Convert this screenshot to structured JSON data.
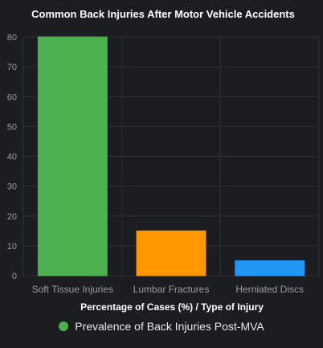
{
  "chart_data": {
    "type": "bar",
    "title": "Common Back Injuries After Motor Vehicle Accidents",
    "xlabel": "Percentage of Cases (%) / Type of Injury",
    "ylabel": "",
    "categories": [
      "Soft Tissue Injuries",
      "Lumbar Fractures",
      "Herniated Discs"
    ],
    "series": [
      {
        "name": "Prevalence of Back Injuries Post-MVA",
        "values": [
          80,
          15,
          5
        ]
      }
    ],
    "ylim": [
      0,
      80
    ],
    "yticks": [
      0,
      10,
      20,
      30,
      40,
      50,
      60,
      70,
      80
    ],
    "grid": true,
    "legend_position": "bottom",
    "bar_colors": [
      "#4caf50",
      "#ff9800",
      "#2196f3"
    ],
    "legend_color": "#4caf50"
  }
}
